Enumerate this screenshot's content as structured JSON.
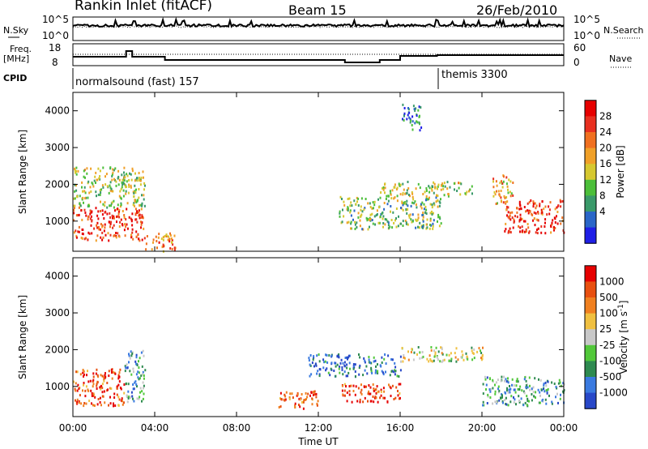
{
  "header": {
    "station": "Rankin Inlet (fitACF)",
    "beam": "Beam 15",
    "date": "26/Feb/2010"
  },
  "summary_panel": {
    "nsky_label": "N.Sky",
    "nsky_ticks": [
      "10^5",
      "10^0"
    ],
    "nsearch_label": "N.Search",
    "nsearch_ticks": [
      "10^5",
      "10^0"
    ],
    "freq_label": "Freq.",
    "freq_unit": "[MHz]",
    "freq_ticks": [
      "18",
      "8"
    ],
    "nave_label": "Nave",
    "nave_ticks": [
      "60",
      "0"
    ],
    "cpid_label": "CPID",
    "cpid_segments": [
      "normalsound (fast) 157",
      "themis 3300"
    ]
  },
  "chart_data": [
    {
      "type": "heatmap",
      "parameter": "Power",
      "ylabel": "Slant Range [km]",
      "y_ticks": [
        "1000",
        "2000",
        "3000",
        "4000"
      ],
      "colorbar_label": "Power [dB]",
      "colorbar_ticks": [
        "28",
        "24",
        "20",
        "16",
        "12",
        "8",
        "4"
      ],
      "colors": [
        "#1f1fe6",
        "#2a66c8",
        "#3a9a6a",
        "#4cbf3a",
        "#d6c830",
        "#f0a028",
        "#f07020",
        "#e83020",
        "#e60000"
      ],
      "patches": [
        {
          "t0": 0.0,
          "t1": 3.5,
          "r0": 500,
          "r1": 1400,
          "level": 0.85
        },
        {
          "t0": 0.0,
          "t1": 3.5,
          "r0": 1400,
          "r1": 2500,
          "level": 0.45
        },
        {
          "t0": 3.5,
          "t1": 5.0,
          "r0": 200,
          "r1": 700,
          "level": 0.7
        },
        {
          "t0": 13.0,
          "t1": 18.0,
          "r0": 800,
          "r1": 1700,
          "level": 0.4
        },
        {
          "t0": 15.0,
          "t1": 19.5,
          "r0": 1700,
          "r1": 2100,
          "level": 0.45
        },
        {
          "t0": 16.0,
          "t1": 17.0,
          "r0": 3500,
          "r1": 4200,
          "level": 0.2
        },
        {
          "t0": 21.0,
          "t1": 24.0,
          "r0": 700,
          "r1": 1600,
          "level": 0.85
        },
        {
          "t0": 20.5,
          "t1": 21.5,
          "r0": 1500,
          "r1": 2300,
          "level": 0.6
        }
      ]
    },
    {
      "type": "heatmap",
      "parameter": "Velocity",
      "ylabel": "Slant Range [km]",
      "y_ticks": [
        "1000",
        "2000",
        "3000",
        "4000"
      ],
      "x_ticks": [
        "00:00",
        "04:00",
        "08:00",
        "12:00",
        "16:00",
        "20:00",
        "00:00"
      ],
      "xlabel": "Time UT",
      "colorbar_label": "Velocity [m s^-1]",
      "colorbar_ticks": [
        "1000",
        "500",
        "100",
        "25",
        "-25",
        "-100",
        "-500",
        "-1000"
      ],
      "colors": [
        "#2848c8",
        "#3a7ae0",
        "#2e8a50",
        "#52c83a",
        "#c8c8c8",
        "#f0c040",
        "#f08020",
        "#e85010",
        "#e60000"
      ],
      "patches": [
        {
          "t0": 0.0,
          "t1": 2.5,
          "r0": 500,
          "r1": 1500,
          "level": 0.85
        },
        {
          "t0": 2.5,
          "t1": 3.5,
          "r0": 600,
          "r1": 2000,
          "level": 0.3
        },
        {
          "t0": 11.5,
          "t1": 16.0,
          "r0": 1300,
          "r1": 1900,
          "level": 0.15
        },
        {
          "t0": 13.0,
          "t1": 16.0,
          "r0": 600,
          "r1": 1100,
          "level": 0.85
        },
        {
          "t0": 16.0,
          "t1": 20.0,
          "r0": 1700,
          "r1": 2100,
          "level": 0.5
        },
        {
          "t0": 20.0,
          "t1": 24.0,
          "r0": 500,
          "r1": 1300,
          "level": 0.3
        },
        {
          "t0": 10.0,
          "t1": 12.0,
          "r0": 400,
          "r1": 900,
          "level": 0.8
        }
      ]
    }
  ]
}
